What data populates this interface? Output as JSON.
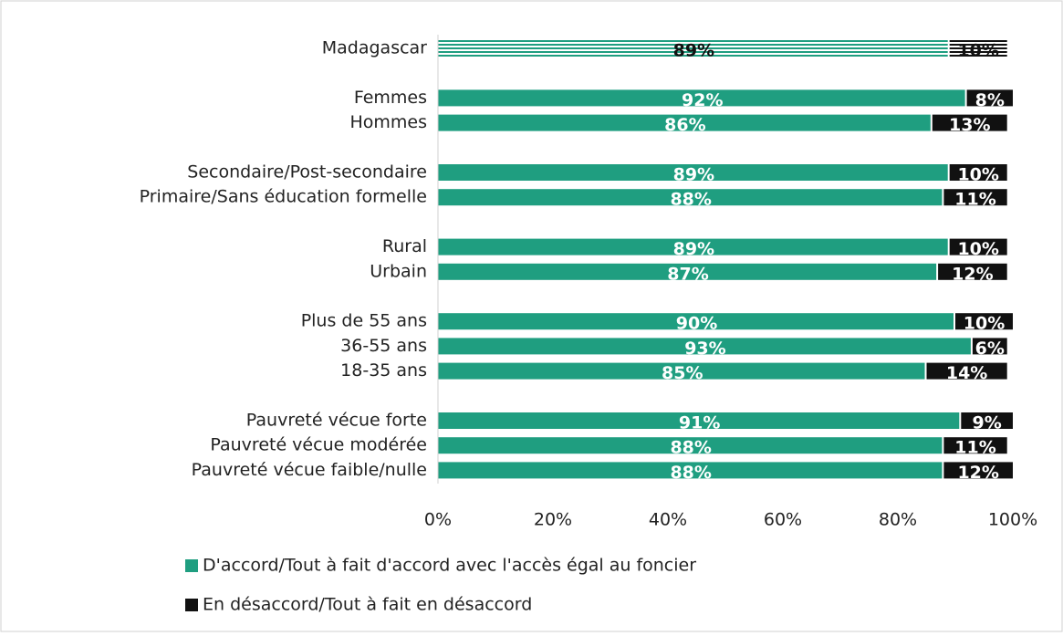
{
  "chart_data": {
    "type": "stacked-bar-horizontal",
    "categories": [
      "Madagascar",
      null,
      "Femmes",
      "Hommes",
      null,
      "Secondaire/Post-secondaire",
      "Primaire/Sans éducation formelle",
      null,
      "Rural",
      "Urbain",
      null,
      "Plus de 55 ans",
      "36-55 ans",
      "18-35 ans",
      null,
      "Pauvreté vécue forte",
      "Pauvreté vécue modérée",
      "Pauvreté vécue faible/nulle"
    ],
    "series": [
      {
        "name": "D'accord/Tout à fait d'accord avec l'accès égal au foncier",
        "color": "#1f9e80",
        "values": [
          89,
          null,
          92,
          86,
          null,
          89,
          88,
          null,
          89,
          87,
          null,
          90,
          93,
          85,
          null,
          91,
          88,
          88
        ],
        "value_labels": [
          "89%",
          null,
          "92%",
          "86%",
          null,
          "89%",
          "88%",
          null,
          "89%",
          "87%",
          null,
          "90%",
          "93%",
          "85%",
          null,
          "91%",
          "88%",
          "88%"
        ]
      },
      {
        "name": "En désaccord/Tout à fait en désaccord",
        "color": "#111111",
        "values": [
          10,
          null,
          8,
          13,
          null,
          10,
          11,
          null,
          10,
          12,
          null,
          10,
          6,
          14,
          null,
          9,
          11,
          12
        ],
        "value_labels": [
          "10%",
          null,
          "8%",
          "13%",
          null,
          "10%",
          "11%",
          null,
          "10%",
          "12%",
          null,
          "10%",
          "6%",
          "14%",
          null,
          "9%",
          "11%",
          "12%"
        ]
      }
    ],
    "xlim": [
      0,
      100
    ],
    "xticks": [
      {
        "value": 0,
        "label": "0%"
      },
      {
        "value": 20,
        "label": "20%"
      },
      {
        "value": 40,
        "label": "40%"
      },
      {
        "value": 60,
        "label": "60%"
      },
      {
        "value": 80,
        "label": "80%"
      },
      {
        "value": 100,
        "label": "100%"
      }
    ]
  }
}
